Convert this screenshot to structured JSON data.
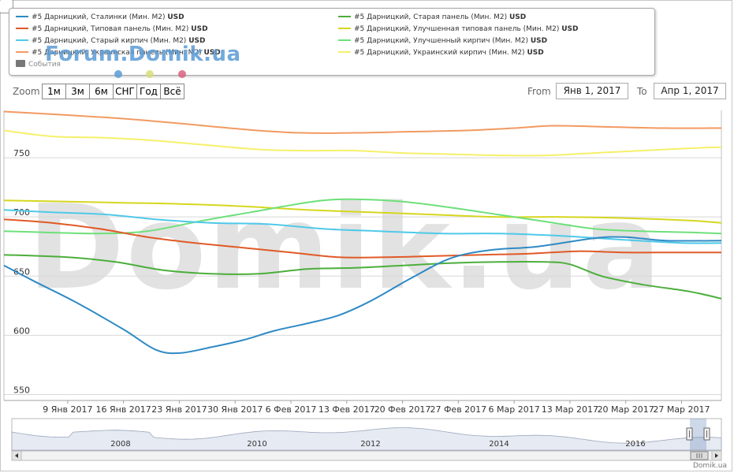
{
  "zoom": {
    "label": "Zoom",
    "buttons": [
      "1м",
      "3м",
      "6м",
      "СНГ",
      "Год",
      "Всё"
    ]
  },
  "range": {
    "from_label": "From",
    "from_value": "Янв 1, 2017",
    "to_label": "To",
    "to_value": "Апр 1, 2017"
  },
  "legend": {
    "items": [
      {
        "label": "#5 Дарницкий, Сталинки (Мин. М2)",
        "unit": "USD",
        "color": "#2f8ac4"
      },
      {
        "label": "#5 Дарницкий, Старая панель (Мин. М2)",
        "unit": "USD",
        "color": "#4cae3c"
      },
      {
        "label": "#5 Дарницкий, Типовая панель (Мин. М2)",
        "unit": "USD",
        "color": "#e05a27"
      },
      {
        "label": "#5 Дарницкий, Улучшенная типовая панель (Мин. М2)",
        "unit": "USD",
        "color": "#d6d61f"
      },
      {
        "label": "#5 Дарницкий, Старый кирпич (Мин. М2)",
        "unit": "USD",
        "color": "#4fc9e8"
      },
      {
        "label": "#5 Дарницкий, Улучшенный кирпич (Мин. М2)",
        "unit": "USD",
        "color": "#6ee07a"
      },
      {
        "label": "#5 Дарницкий, Украинская панель (Мин. М2)",
        "unit": "USD",
        "color": "#f29a62"
      },
      {
        "label": "#5 Дарницкий, Украинский кирпич (Мин. М2)",
        "unit": "USD",
        "color": "#f5f06a"
      }
    ],
    "events_label": "События",
    "marker_colors": [
      "#5b9bd5",
      "#d8dc7a",
      "#d9607c"
    ]
  },
  "brand": {
    "logo_text": "Forum.Domik.ua",
    "watermark": "Domik.ua",
    "credit": "Domik.ua"
  },
  "navigator": {
    "year_labels": [
      "2008",
      "2010",
      "2012",
      "2014",
      "2016"
    ],
    "scroll_icon": "grip-icon"
  },
  "chart_data": {
    "type": "line",
    "x_tick_labels": [
      "9 Янв 2017",
      "16 Янв 2017",
      "23 Янв 2017",
      "30 Янв 2017",
      "6 Фев 2017",
      "13 Фев 2017",
      "20 Фев 2017",
      "27 Фев 2017",
      "6 Мар 2017",
      "13 Мар 2017",
      "20 Мар 2017",
      "27 Мар 2017"
    ],
    "x_tick_days": [
      8,
      15,
      22,
      29,
      36,
      43,
      50,
      57,
      64,
      71,
      78,
      85
    ],
    "xlim_days": [
      0,
      90
    ],
    "x_start_date": "2017-01-01",
    "y_ticks": [
      550,
      600,
      650,
      700,
      750
    ],
    "ylim": [
      545,
      790
    ],
    "grid": true,
    "series": [
      {
        "name": "#5 Дарницкий, Сталинки (Мин. М2)",
        "color": "#2f8ac4",
        "x": [
          0,
          4,
          9,
          15,
          19,
          22,
          26,
          30,
          34,
          38,
          42,
          46,
          51,
          56,
          61,
          67,
          74,
          78,
          83,
          90
        ],
        "y": [
          659,
          645,
          628,
          605,
          588,
          585,
          590,
          596,
          604,
          610,
          617,
          629,
          648,
          665,
          672,
          675,
          682,
          683,
          680,
          680
        ]
      },
      {
        "name": "#5 Дарницкий, Старая панель (Мин. М2)",
        "color": "#4cae3c",
        "x": [
          0,
          8,
          14,
          20,
          26,
          32,
          38,
          44,
          50,
          56,
          62,
          68,
          71,
          75,
          80,
          86,
          90
        ],
        "y": [
          668,
          666,
          662,
          655,
          652,
          652,
          656,
          657,
          659,
          661,
          662,
          662,
          660,
          650,
          643,
          637,
          631
        ]
      },
      {
        "name": "#5 Дарницкий, Типовая панель (Мин. М2)",
        "color": "#e05a27",
        "x": [
          0,
          6,
          12,
          18,
          24,
          30,
          36,
          42,
          48,
          54,
          60,
          66,
          72,
          78,
          84,
          90
        ],
        "y": [
          698,
          695,
          690,
          683,
          678,
          674,
          670,
          666,
          666,
          667,
          668,
          669,
          671,
          670,
          670,
          670
        ]
      },
      {
        "name": "#5 Дарницкий, Улучшенная типовая панель (Мин. М2)",
        "color": "#d6d61f",
        "x": [
          0,
          8,
          15,
          22,
          30,
          38,
          46,
          54,
          62,
          70,
          78,
          86,
          90
        ],
        "y": [
          714,
          713,
          712,
          711,
          709,
          706,
          704,
          702,
          700,
          700,
          699,
          697,
          695
        ]
      },
      {
        "name": "#5 Дарницкий, Старый кирпич (Мин. М2)",
        "color": "#4fc9e8",
        "x": [
          0,
          6,
          13,
          19,
          26,
          33,
          40,
          47,
          55,
          62,
          70,
          77,
          85,
          90
        ],
        "y": [
          706,
          704,
          702,
          698,
          695,
          694,
          690,
          688,
          686,
          686,
          684,
          681,
          678,
          678
        ]
      },
      {
        "name": "#5 Дарницкий, Улучшенный кирпич (Мин. М2)",
        "color": "#6ee07a",
        "x": [
          0,
          5,
          12,
          18,
          25,
          31,
          36,
          40,
          44,
          50,
          56,
          62,
          68,
          74,
          80,
          86,
          90
        ],
        "y": [
          688,
          687,
          686,
          688,
          697,
          704,
          710,
          714,
          715,
          713,
          708,
          702,
          696,
          690,
          688,
          687,
          686
        ]
      },
      {
        "name": "#5 Дарницкий, Украинская панель (Мин. М2)",
        "color": "#f29a62",
        "x": [
          0,
          8,
          15,
          22,
          30,
          37,
          44,
          51,
          58,
          64,
          69,
          76,
          83,
          90
        ],
        "y": [
          789,
          786,
          783,
          779,
          774,
          771,
          771,
          772,
          773,
          775,
          777,
          776,
          775,
          775
        ]
      },
      {
        "name": "#5 Дарницкий, Украинский кирпич (Мин. М2)",
        "color": "#f5f06a",
        "x": [
          0,
          6,
          12,
          18,
          25,
          32,
          38,
          44,
          50,
          56,
          62,
          68,
          74,
          80,
          86,
          90
        ],
        "y": [
          773,
          768,
          767,
          765,
          761,
          757,
          756,
          756,
          754,
          753,
          752,
          752,
          754,
          756,
          758,
          759
        ]
      }
    ]
  }
}
